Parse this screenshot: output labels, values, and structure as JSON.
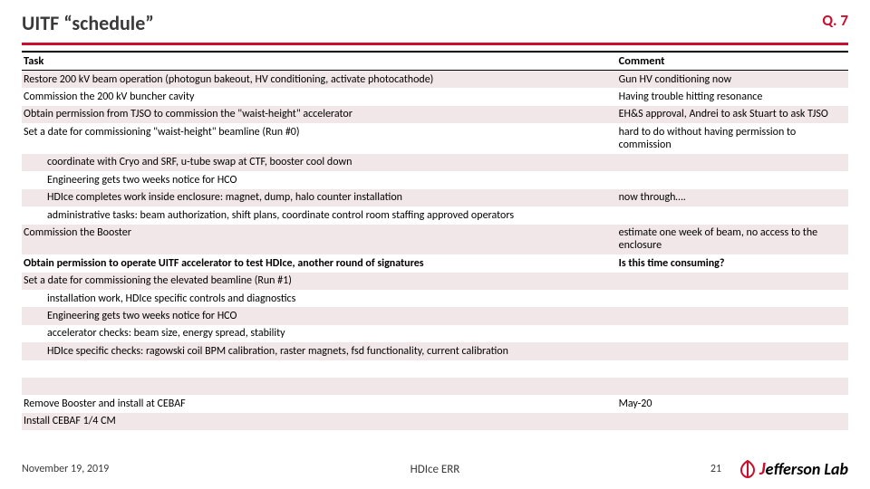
{
  "header": {
    "title": "UITF “schedule”",
    "q": "Q. 7"
  },
  "table": {
    "headers": {
      "task": "Task",
      "comment": "Comment"
    },
    "rows": [
      {
        "task": "Restore 200 kV beam operation (photogun bakeout, HV conditioning, activate photocathode)",
        "comment": "Gun HV conditioning now",
        "band": true
      },
      {
        "task": "Commission the 200 kV buncher cavity",
        "comment": "Having trouble hitting resonance"
      },
      {
        "task": "Obtain permission from TJSO to commission the \"waist-height\" accelerator",
        "comment": "EH&S approval, Andrei to ask Stuart to ask TJSO",
        "band": true
      },
      {
        "task": "Set a date for commissioning \"waist-height\" beamline (Run #0)",
        "comment": "hard to do without having permission to commission"
      },
      {
        "task": "coordinate with Cryo and SRF, u-tube swap at CTF, booster cool down",
        "comment": "",
        "indent": true,
        "band": true
      },
      {
        "task": "Engineering gets two weeks notice for HCO",
        "comment": "",
        "indent": true
      },
      {
        "task": "HDIce completes work inside enclosure: magnet, dump, halo counter installation",
        "comment": "now through….",
        "indent": true,
        "band": true
      },
      {
        "task": "administrative tasks: beam authorization, shift plans, coordinate control room staffing approved operators",
        "comment": "",
        "indent": true
      },
      {
        "task": "Commission the Booster",
        "comment": "estimate one week of beam, no access to the enclosure",
        "band": true
      },
      {
        "task": "Obtain permission to operate UITF accelerator to test HDIce, another round of signatures",
        "comment": "Is this time consuming?",
        "bold": true
      },
      {
        "task": "Set a date for commissioning the elevated beamline (Run #1)",
        "comment": "",
        "band": true
      },
      {
        "task": "installation work, HDIce specific controls and diagnostics",
        "comment": "",
        "indent": true
      },
      {
        "task": "Engineering gets two weeks notice for HCO",
        "comment": "",
        "indent": true,
        "band": true
      },
      {
        "task": "accelerator checks: beam size, energy spread, stability",
        "comment": "",
        "indent": true
      },
      {
        "task": "HDIce specific checks: ragowski coil BPM calibration, raster magnets, fsd functionality, current calibration",
        "comment": "",
        "indent": true,
        "band": true
      },
      {
        "task": "",
        "comment": ""
      },
      {
        "task": "",
        "comment": "",
        "band": true
      },
      {
        "task": "Remove Booster and install at CEBAF",
        "comment": "May-20"
      },
      {
        "task": "Install CEBAF 1/4 CM",
        "comment": "",
        "band": true
      }
    ]
  },
  "footer": {
    "date": "November 19, 2019",
    "center": "HDIce ERR",
    "page": "21",
    "logo": {
      "j": "J",
      "rest": "efferson Lab"
    }
  },
  "colors": {
    "accent": "#c8102e",
    "band": "#f2e7e8"
  }
}
